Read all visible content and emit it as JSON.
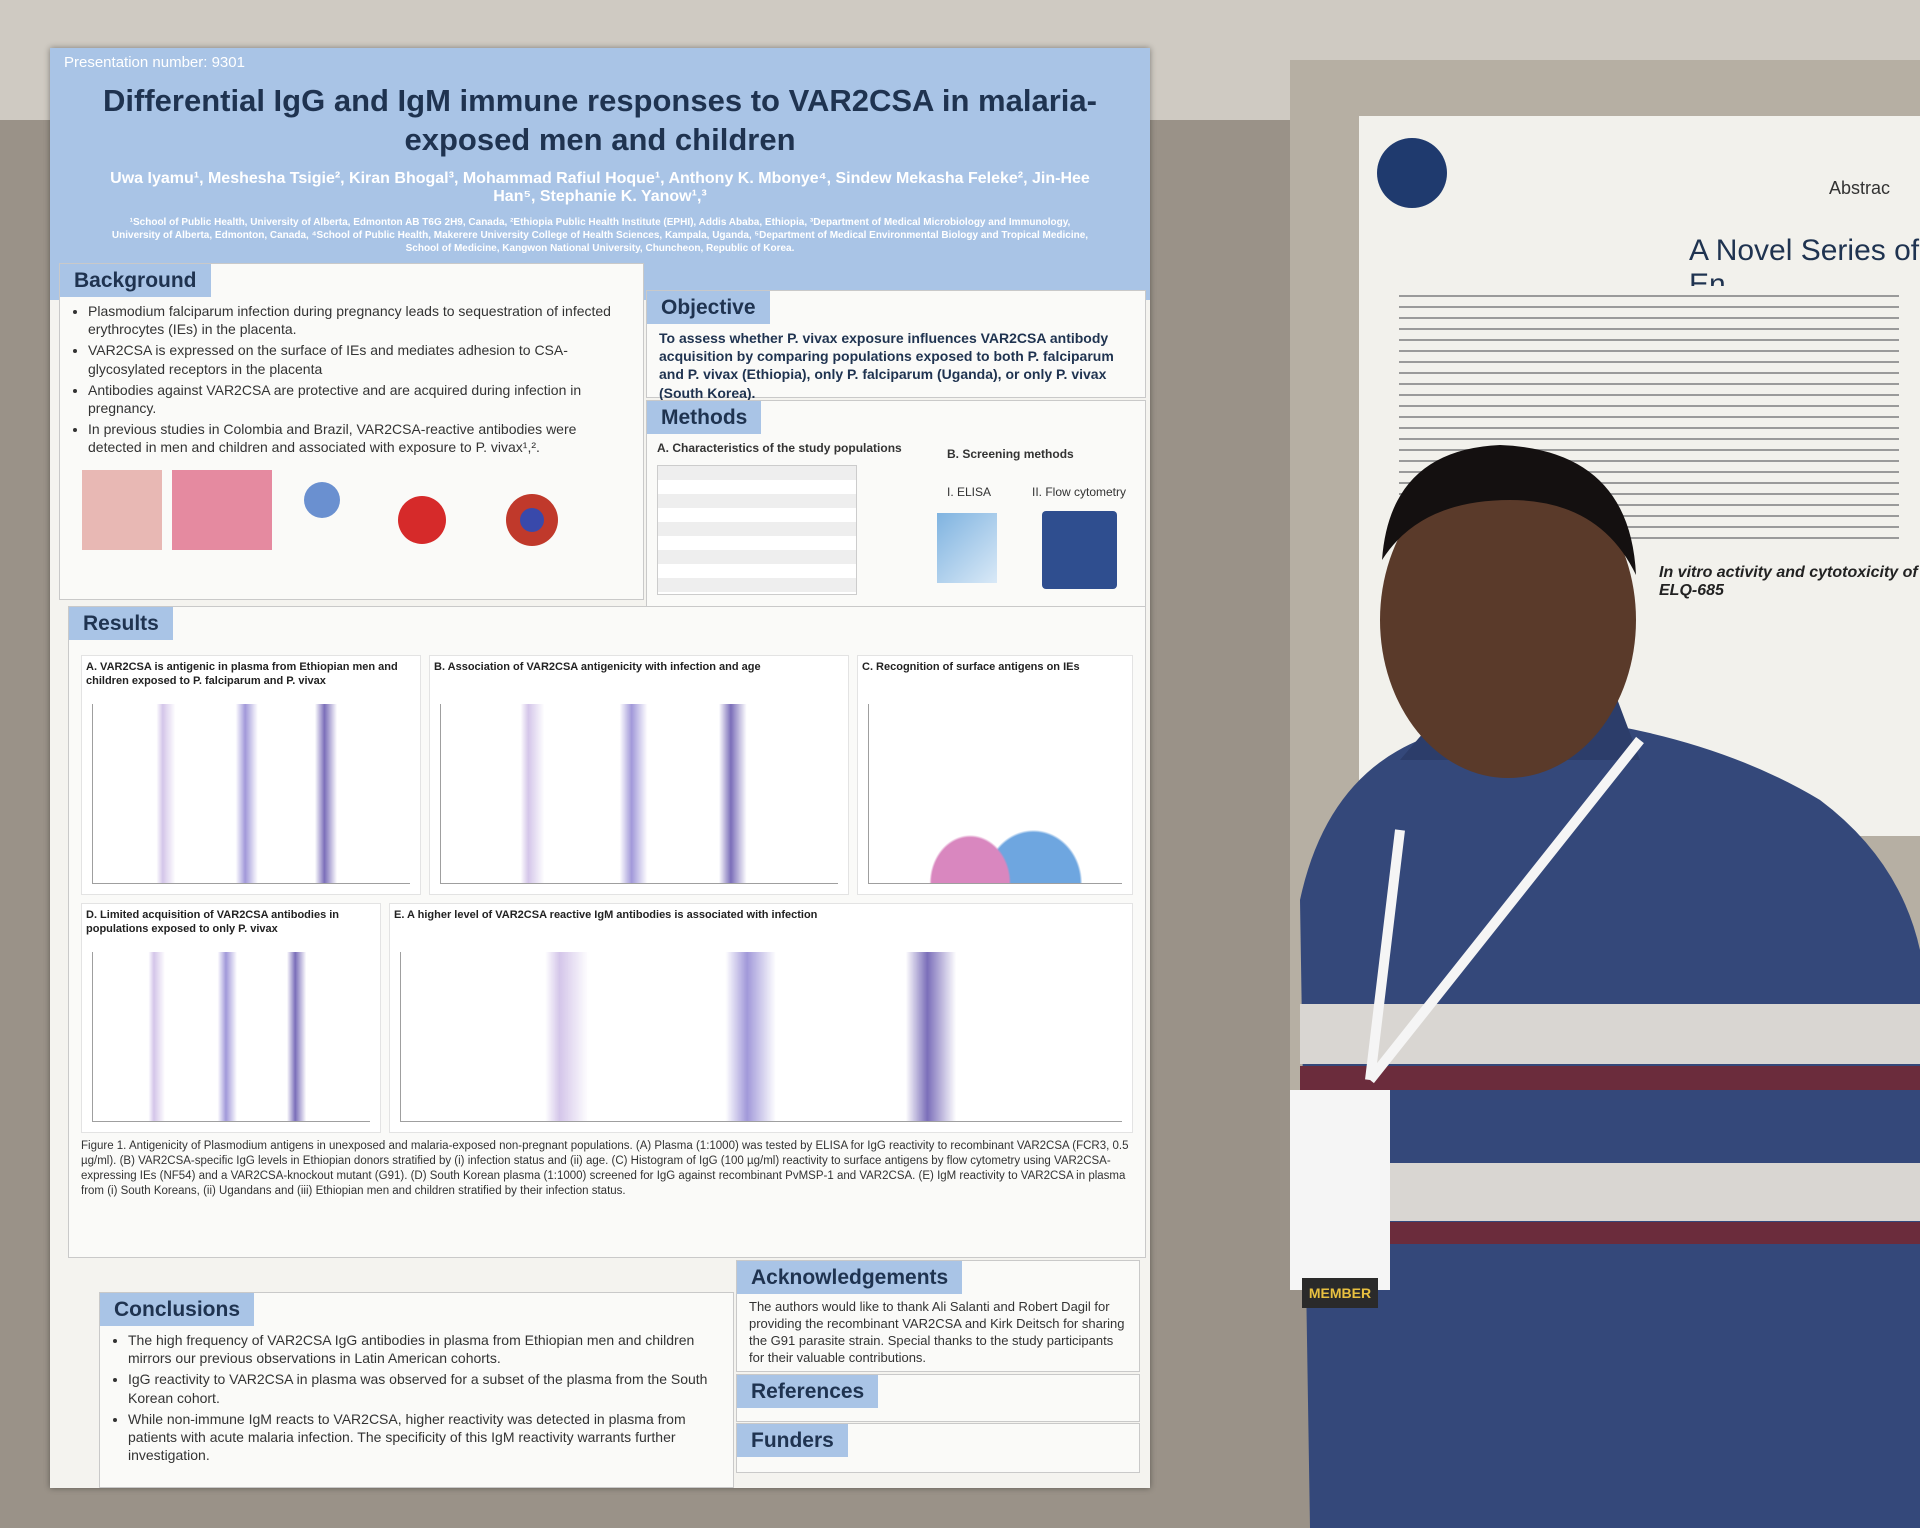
{
  "poster": {
    "presentation_number": "Presentation number: 9301",
    "title": "Differential IgG and IgM immune responses to VAR2CSA in malaria-exposed men and children",
    "authors": "Uwa Iyamu¹, Meshesha Tsigie², Kiran Bhogal³, Mohammad Rafiul Hoque¹, Anthony K. Mbonye⁴, Sindew Mekasha Feleke², Jin-Hee Han⁵, Stephanie K. Yanow¹,³",
    "affiliations": "¹School of Public Health, University of Alberta, Edmonton AB T6G 2H9, Canada, ²Ethiopia Public Health Institute (EPHI), Addis Ababa, Ethiopia, ³Department of Medical Microbiology and Immunology, University of Alberta, Edmonton, Canada, ⁴School of Public Health, Makerere University College of Health Sciences, Kampala, Uganda, ⁵Department of Medical Environmental Biology and Tropical Medicine, School of Medicine, Kangwon National University, Chuncheon, Republic of Korea.",
    "background": {
      "heading": "Background",
      "items": [
        "Plasmodium falciparum infection during pregnancy leads to sequestration of infected erythrocytes (IEs) in the placenta.",
        "VAR2CSA is expressed on the surface of IEs and mediates adhesion to CSA-glycosylated receptors in the placenta",
        "Antibodies against VAR2CSA are protective and are acquired during infection in pregnancy.",
        "In previous studies in Colombia and Brazil, VAR2CSA-reactive antibodies were detected in men and children and associated with exposure to P. vivax¹,²."
      ]
    },
    "objective": {
      "heading": "Objective",
      "text": "To assess whether P. vivax exposure influences VAR2CSA antibody acquisition by comparing populations exposed to both P. falciparum and P. vivax (Ethiopia), only P. falciparum (Uganda), or only P. vivax (South Korea)."
    },
    "methods": {
      "heading": "Methods",
      "a": "A. Characteristics of the study populations",
      "b": "B. Screening methods",
      "elisa": "I. ELISA",
      "flow": "II. Flow cytometry"
    },
    "results": {
      "heading": "Results",
      "panels": [
        "A. VAR2CSA is antigenic in plasma from Ethiopian men and children exposed to P. falciparum and P. vivax",
        "B. Association of VAR2CSA antigenicity with infection and age",
        "C. Recognition of surface antigens on IEs",
        "D. Limited acquisition of VAR2CSA antibodies in populations exposed to only P. vivax",
        "E. A higher level of VAR2CSA reactive IgM antibodies is associated with infection"
      ]
    },
    "figure_caption": "Figure 1. Antigenicity of Plasmodium antigens in unexposed and malaria-exposed non-pregnant populations. (A) Plasma (1:1000) was tested by ELISA for IgG reactivity to recombinant VAR2CSA (FCR3, 0.5 µg/ml). (B) VAR2CSA-specific IgG levels in Ethiopian donors stratified by (i) infection status and (ii) age. (C) Histogram of IgG (100 µg/ml) reactivity to surface antigens by flow cytometry using VAR2CSA-expressing IEs (NF54) and a VAR2CSA-knockout mutant (G91). (D) South Korean plasma (1:1000) screened for IgG against recombinant PvMSP-1 and VAR2CSA. (E) IgM reactivity to VAR2CSA in plasma from (i) South Koreans, (ii) Ugandans and (iii) Ethiopian men and children stratified by their infection status.",
    "conclusions": {
      "heading": "Conclusions",
      "items": [
        "The high frequency of VAR2CSA IgG antibodies in plasma from Ethiopian men and children mirrors our previous observations in Latin American cohorts.",
        "IgG reactivity to VAR2CSA in plasma was observed for a subset of the plasma from the South Korean cohort.",
        "While non-immune IgM reacts to VAR2CSA, higher reactivity was detected in plasma from patients with acute malaria infection. The specificity of this IgM reactivity warrants further investigation."
      ]
    },
    "acknowledgements": {
      "heading": "Acknowledgements",
      "text": "The authors would like to thank Ali Salanti and Robert Dagil for providing the recombinant VAR2CSA and Kirk Deitsch for sharing the G91 parasite strain. Special thanks to the study participants for their valuable contributions."
    },
    "references": {
      "heading": "References"
    },
    "funders": {
      "heading": "Funders"
    }
  },
  "second_poster": {
    "abstract_label": "Abstrac",
    "title": "A Novel Series of En",
    "section": "In vitro activity and cytotoxicity of ELQ-685"
  },
  "badge": {
    "label": "MEMBER"
  }
}
